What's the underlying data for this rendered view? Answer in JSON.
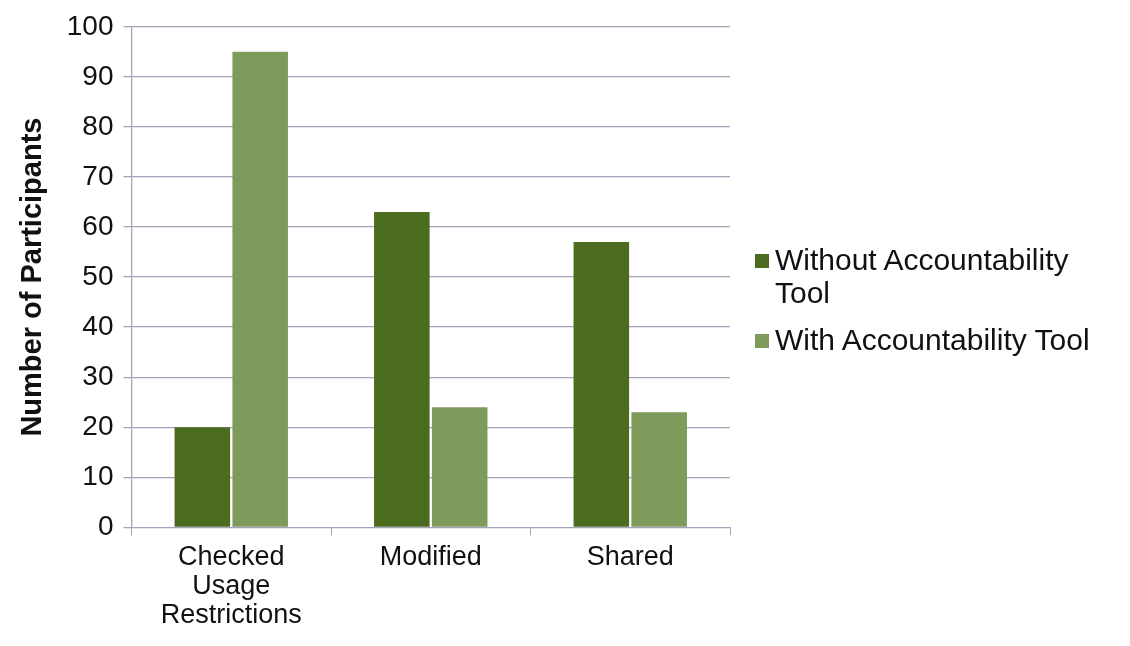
{
  "chart_data": {
    "type": "bar",
    "ylabel": "Number of Participants",
    "categories": [
      "Checked Usage Restrictions",
      "Modified",
      "Shared"
    ],
    "series": [
      {
        "name": "Without Accountability Tool",
        "color": "#4b6b1f",
        "values": [
          20,
          63,
          57
        ]
      },
      {
        "name": "With Accountability Tool",
        "color": "#7e9b5c",
        "values": [
          95,
          24,
          23
        ]
      }
    ],
    "ylim": [
      0,
      100
    ],
    "yticks": [
      0,
      10,
      20,
      30,
      40,
      50,
      60,
      70,
      80,
      90,
      100
    ],
    "grid": "y",
    "legend": "right"
  }
}
